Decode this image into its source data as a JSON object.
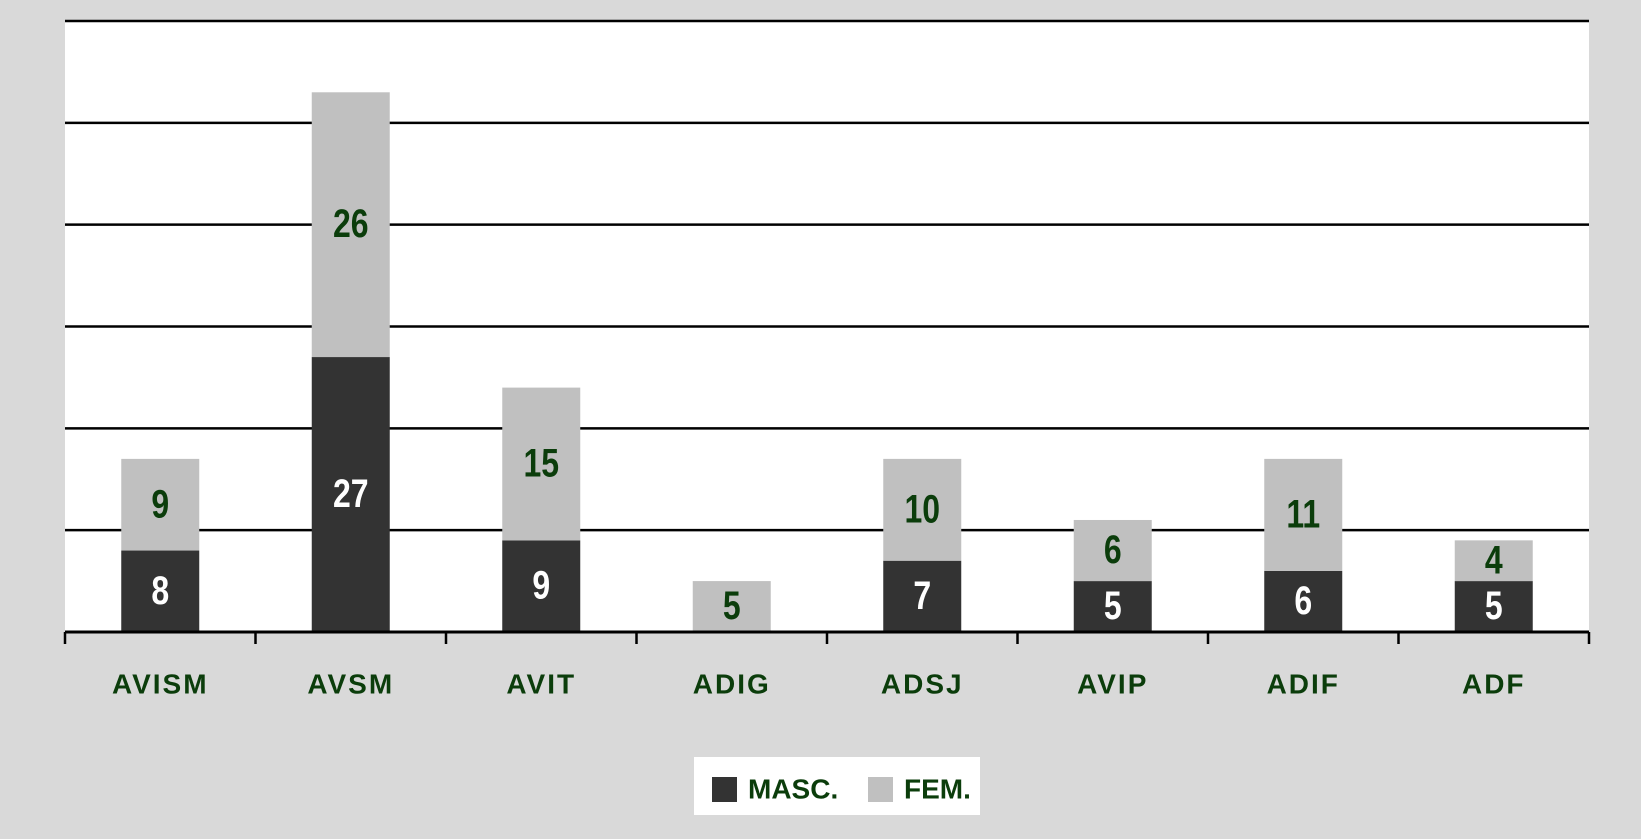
{
  "chart_data": {
    "type": "stacked-bar",
    "categories": [
      "AVISM",
      "AVSM",
      "AVIT",
      "ADIG",
      "ADSJ",
      "AVIP",
      "ADIF",
      "ADF"
    ],
    "series": [
      {
        "name": "MASC.",
        "color": "#333333",
        "values": [
          8,
          27,
          9,
          null,
          7,
          5,
          6,
          5
        ]
      },
      {
        "name": "FEM.",
        "color": "#c0c0c0",
        "values": [
          9,
          26,
          15,
          5,
          10,
          6,
          11,
          4
        ]
      }
    ],
    "ylim": [
      0,
      60
    ],
    "yticks": [
      0,
      10,
      20,
      30,
      40,
      50,
      60
    ],
    "grid": true,
    "legend": "bottom"
  }
}
